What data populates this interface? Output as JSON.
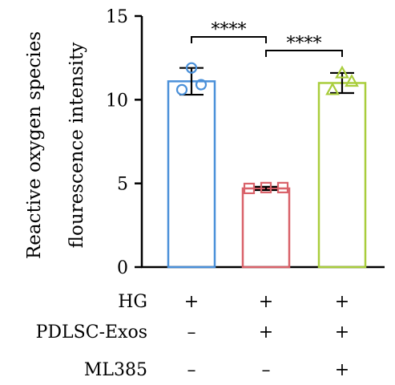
{
  "chart_data": {
    "type": "bar",
    "title": "",
    "ylabel_lines": [
      "Reactive oxygen species",
      "flourescence intensity"
    ],
    "ylim": [
      0,
      15
    ],
    "yticks": [
      0,
      5,
      10,
      15
    ],
    "groups": [
      {
        "value": 11.1,
        "error": 0.8,
        "points": [
          11.9,
          10.9,
          10.6
        ],
        "marker": "circle",
        "color": "#4a90d9"
      },
      {
        "value": 4.7,
        "error": 0.1,
        "points": [
          4.7,
          4.75,
          4.75
        ],
        "marker": "square",
        "color": "#d9626a"
      },
      {
        "value": 11.0,
        "error": 0.6,
        "points": [
          11.6,
          11.1,
          10.6
        ],
        "marker": "triangle",
        "color": "#a9cd3c"
      }
    ],
    "conditions": [
      {
        "label": "HG",
        "signs": [
          "+",
          "+",
          "+"
        ]
      },
      {
        "label": "PDLSC-Exos",
        "signs": [
          "–",
          "+",
          "+"
        ]
      },
      {
        "label": "ML385",
        "signs": [
          "–",
          "–",
          "+"
        ]
      }
    ],
    "significance": [
      {
        "from": 0,
        "to": 1,
        "label": "****"
      },
      {
        "from": 1,
        "to": 2,
        "label": "****"
      }
    ]
  }
}
